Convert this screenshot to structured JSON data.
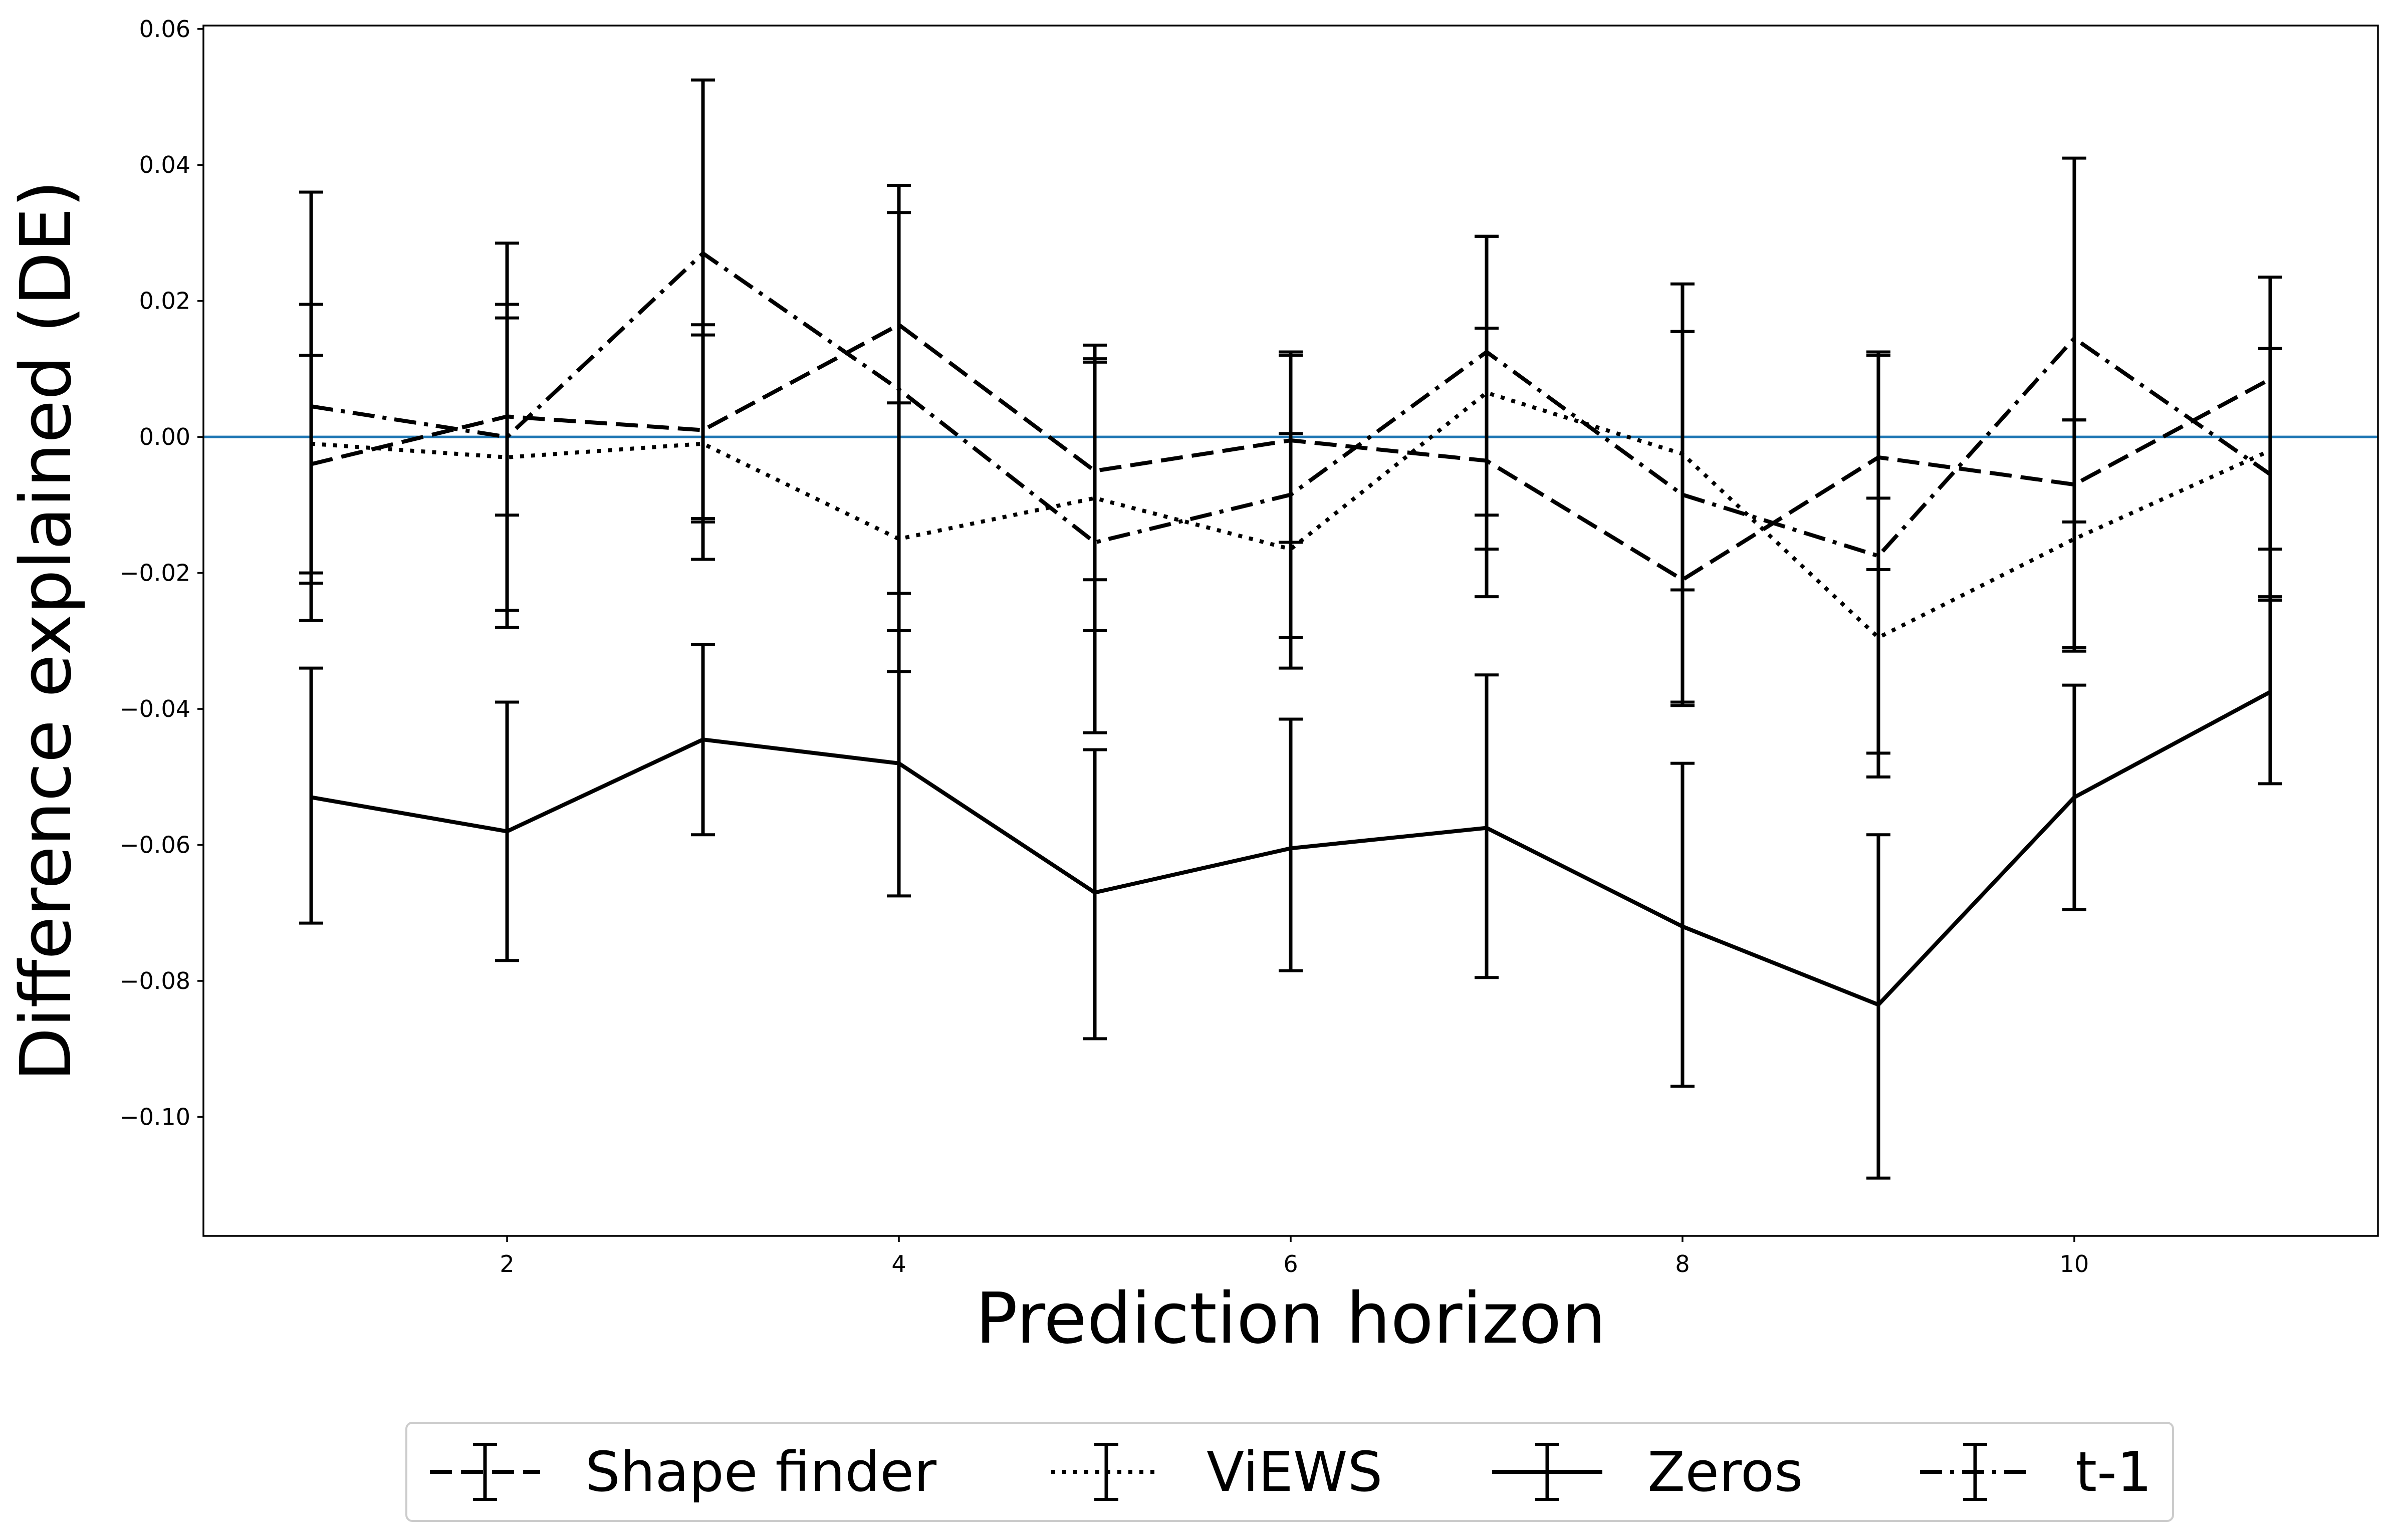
{
  "chart_data": {
    "type": "line",
    "title": "",
    "xlabel": "Prediction horizon",
    "ylabel": "Difference explained (DE)",
    "x": [
      1,
      2,
      3,
      4,
      5,
      6,
      7,
      8,
      9,
      10,
      11
    ],
    "xlim": [
      0.45,
      11.55
    ],
    "ylim": [
      -0.1175,
      0.0605
    ],
    "xticks": [
      2,
      4,
      6,
      8,
      10
    ],
    "yticks": [
      0.06,
      0.04,
      0.02,
      0.0,
      -0.02,
      -0.04,
      -0.06,
      -0.08,
      -0.1
    ],
    "xtick_labels": [
      "2",
      "4",
      "6",
      "8",
      "10"
    ],
    "ytick_labels": [
      "0.06",
      "0.04",
      "0.02",
      "0.00",
      "−0.02",
      "−0.04",
      "−0.06",
      "−0.08",
      "−0.10"
    ],
    "grid": false,
    "legend_position": "bottom-center",
    "reference_line": {
      "y": 0.0,
      "color": "#1f77b4"
    },
    "series": [
      {
        "name": "Shape finder",
        "line_style": "dashed",
        "color": "#000000",
        "values": [
          -0.004,
          0.003,
          0.001,
          0.0165,
          -0.005,
          -0.0005,
          -0.0035,
          -0.021,
          -0.003,
          -0.007,
          0.0085
        ],
        "err_low": [
          -0.027,
          -0.028,
          -0.018,
          -0.0345,
          -0.0435,
          -0.034,
          -0.0235,
          -0.0395,
          -0.0465,
          -0.0315,
          -0.024
        ],
        "err_high": [
          0.0195,
          0.0285,
          0.0525,
          0.037,
          0.0135,
          0.0125,
          0.0295,
          0.0225,
          0.0125,
          0.0025,
          0.0235
        ]
      },
      {
        "name": "ViEWS",
        "line_style": "dotted",
        "color": "#000000",
        "values": [
          -0.001,
          -0.003,
          -0.001,
          -0.015,
          -0.009,
          -0.0165,
          0.0065,
          -0.0025,
          -0.0295,
          -0.015,
          -0.002
        ],
        "err_low": [
          -0.0215,
          -0.0255,
          -0.0125,
          -0.0285,
          -0.021,
          -0.0295,
          -0.0165,
          -0.0225,
          -0.05,
          -0.031,
          -0.0165
        ],
        "err_high": [
          0.012,
          0.0175,
          0.015,
          0.005,
          0.0115,
          0.012,
          0.0295,
          0.0155,
          0.012,
          0.0025,
          0.013
        ]
      },
      {
        "name": "Zeros",
        "line_style": "solid",
        "color": "#000000",
        "values": [
          -0.053,
          -0.058,
          -0.0445,
          -0.048,
          -0.067,
          -0.0605,
          -0.0575,
          -0.072,
          -0.0835,
          -0.053,
          -0.0375
        ],
        "err_low": [
          -0.0715,
          -0.077,
          -0.0585,
          -0.0675,
          -0.0885,
          -0.0785,
          -0.0795,
          -0.0955,
          -0.109,
          -0.0695,
          -0.051
        ],
        "err_high": [
          -0.034,
          -0.039,
          -0.0305,
          -0.0285,
          -0.046,
          -0.0415,
          -0.035,
          -0.048,
          -0.0585,
          -0.0365,
          -0.024
        ]
      },
      {
        "name": "t-1",
        "line_style": "dashdot",
        "color": "#000000",
        "values": [
          0.0045,
          0.0,
          0.027,
          0.007,
          -0.0155,
          -0.0085,
          0.0125,
          -0.0085,
          -0.0175,
          0.0145,
          -0.0055
        ],
        "err_low": [
          -0.02,
          -0.0115,
          -0.012,
          -0.023,
          -0.0285,
          -0.0155,
          -0.0115,
          -0.039,
          -0.0195,
          -0.0125,
          -0.0235
        ],
        "err_high": [
          0.036,
          0.0195,
          0.0165,
          0.033,
          0.011,
          0.0005,
          0.016,
          0.0155,
          -0.009,
          0.041,
          0.013
        ]
      }
    ]
  }
}
